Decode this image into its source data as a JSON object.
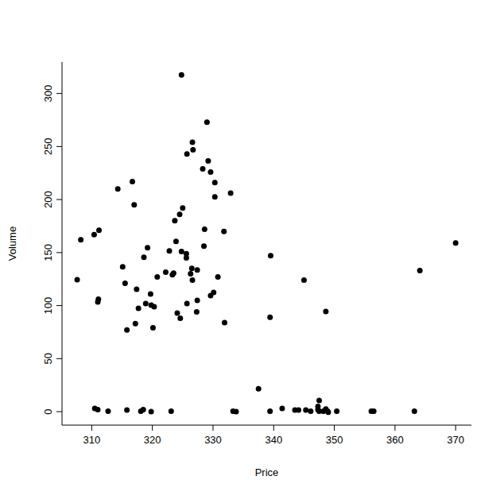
{
  "chart_data": {
    "type": "scatter",
    "x_label": "Price",
    "y_label": "Volume",
    "color": "#000000",
    "marker": "circle",
    "xlim": [
      305.1,
      372.6
    ],
    "ylim": [
      -12.7,
      329.7
    ],
    "xticks": [
      310,
      320,
      330,
      340,
      350,
      360,
      370
    ],
    "yticks": [
      0,
      50,
      100,
      150,
      200,
      250,
      300
    ],
    "x": [
      307.6,
      308.2,
      310.4,
      311.2,
      311.0,
      311.1,
      314.3,
      315.1,
      315.5,
      315.8,
      316.7,
      317.0,
      317.2,
      317.4,
      317.7,
      318.6,
      318.9,
      319.2,
      319.7,
      319.8,
      320.1,
      320.3,
      320.8,
      322.2,
      322.8,
      323.3,
      323.5,
      323.7,
      323.9,
      324.1,
      324.5,
      324.6,
      324.8,
      324.8,
      325.0,
      325.6,
      325.6,
      325.7,
      325.7,
      326.3,
      326.5,
      326.6,
      326.6,
      326.7,
      327.4,
      327.3,
      327.4,
      328.3,
      328.5,
      328.6,
      329.0,
      329.2,
      329.6,
      329.6,
      330.1,
      330.3,
      330.3,
      330.8,
      331.8,
      331.9,
      332.9,
      337.5,
      339.5,
      339.4,
      345.0,
      348.6,
      364.1,
      370.0,
      310.5,
      311.0,
      312.7,
      315.8,
      318.1,
      318.5,
      319.8,
      323.1,
      333.3,
      333.8,
      339.4,
      341.4,
      343.5,
      344.1,
      345.3,
      346.1,
      347.3,
      347.5,
      347.3,
      347.5,
      348.2,
      348.6,
      348.9,
      349.0,
      350.4,
      356.1,
      356.5,
      363.2
    ],
    "values": [
      124.5,
      162,
      167,
      171,
      103.5,
      106,
      210,
      136.5,
      121,
      77,
      217,
      195,
      83,
      115.5,
      97.5,
      145.5,
      102,
      154.5,
      111,
      100.5,
      79,
      99,
      127,
      131.5,
      151.5,
      129,
      130.5,
      180,
      160.5,
      93,
      186,
      88,
      151,
      317.5,
      192,
      149,
      145,
      102,
      243,
      130,
      135,
      124,
      254,
      247,
      133.5,
      94,
      105,
      229,
      156,
      172,
      273,
      236.5,
      226,
      109.5,
      112.5,
      216,
      202.5,
      127,
      170,
      84,
      206,
      21.5,
      147,
      89,
      124,
      94.5,
      133,
      159,
      3,
      2,
      0.5,
      1.5,
      0.5,
      2,
      0,
      0.5,
      0.5,
      0,
      0.5,
      3,
      1.5,
      1.5,
      1.5,
      0.5,
      2,
      0.5,
      5,
      10.5,
      0.5,
      2.5,
      0.5,
      -0.5,
      0.5,
      0.5,
      0.5,
      0.5
    ]
  }
}
